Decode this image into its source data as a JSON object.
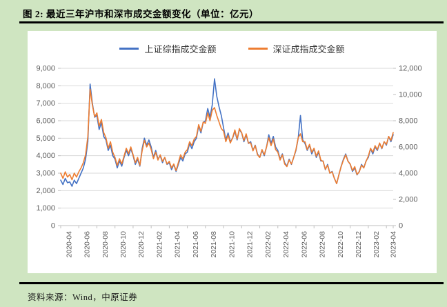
{
  "figure": {
    "title": "图 2:  最近三年沪市和深市成交金额变化（单位：亿元）",
    "source": "资料来源：Wind，中原证券"
  },
  "colors": {
    "background": "#cfe5c1",
    "panel": "#ffffff",
    "grid": "#d9d9d9",
    "axis_line": "#bfbfbf",
    "axis_text": "#595959",
    "series_blue": "#4472c4",
    "series_orange": "#ed7d31",
    "rule_black": "#000000"
  },
  "chart_data": {
    "type": "line",
    "title": "最近三年沪市和深市成交金额变化（单位：亿元）",
    "legend_position": "top",
    "grid": true,
    "x_range": [
      "2020-04",
      "2023-04"
    ],
    "points_per_month": 4,
    "x_tick_labels": [
      "2020-04",
      "2020-06",
      "2020-08",
      "2020-10",
      "2020-12",
      "2021-02",
      "2021-04",
      "2021-06",
      "2021-08",
      "2021-10",
      "2021-12",
      "2022-02",
      "2022-04",
      "2022-06",
      "2022-08",
      "2022-10",
      "2022-12",
      "2023-02",
      "2023-04"
    ],
    "left_axis": {
      "min": 0,
      "max": 9000,
      "tick_step": 1000,
      "ticks": [
        0,
        1000,
        2000,
        3000,
        4000,
        5000,
        6000,
        7000,
        8000,
        9000
      ]
    },
    "right_axis": {
      "min": 0,
      "max": 12000,
      "tick_step": 2000,
      "ticks": [
        0,
        2000,
        4000,
        6000,
        8000,
        10000,
        12000
      ]
    },
    "series": [
      {
        "name": "上证综指成交金额",
        "axis": "left",
        "color": "#4472c4",
        "values": [
          2600,
          2350,
          2700,
          2450,
          2500,
          2250,
          2600,
          2400,
          2700,
          3000,
          3300,
          3800,
          4800,
          8100,
          7000,
          6200,
          6300,
          5500,
          5900,
          5100,
          4900,
          4300,
          4600,
          4000,
          3800,
          3300,
          3700,
          3400,
          3900,
          4300,
          4000,
          4400,
          4000,
          3500,
          3800,
          3400,
          4400,
          5000,
          4600,
          4900,
          4500,
          3900,
          4300,
          3800,
          4000,
          3600,
          3900,
          3500,
          3600,
          3200,
          3500,
          3100,
          3500,
          3900,
          3700,
          4100,
          4200,
          4700,
          4400,
          4800,
          5000,
          5700,
          5300,
          5900,
          6000,
          6700,
          6200,
          6900,
          8400,
          7400,
          6800,
          6300,
          5600,
          4900,
          5300,
          4800,
          5000,
          5400,
          4900,
          5500,
          5300,
          4800,
          5200,
          4700,
          4800,
          4300,
          4600,
          4100,
          3900,
          4300,
          4000,
          4500,
          5200,
          4700,
          5100,
          4500,
          4300,
          3800,
          4100,
          3600,
          3400,
          3800,
          3500,
          3900,
          4300,
          5000,
          6300,
          4900,
          4700,
          4300,
          4600,
          4100,
          4400,
          3900,
          4200,
          3700,
          3700,
          3200,
          3500,
          3000,
          3100,
          2700,
          2400,
          2900,
          3400,
          3800,
          4100,
          3700,
          3500,
          3100,
          3300,
          2900,
          3100,
          3500,
          3300,
          3700,
          3900,
          4400,
          4100,
          4500,
          4300,
          4700,
          4400,
          4800,
          4600,
          5100,
          4800,
          5200
        ]
      },
      {
        "name": "深证成指成交金额",
        "axis": "right",
        "color": "#ed7d31",
        "values": [
          4000,
          3600,
          4100,
          3700,
          3900,
          3500,
          4000,
          3700,
          4100,
          4400,
          4800,
          5400,
          6800,
          10400,
          9200,
          8300,
          8600,
          7600,
          8100,
          7100,
          6700,
          5900,
          6400,
          5600,
          5200,
          4600,
          5100,
          4700,
          5300,
          5900,
          5500,
          6000,
          5400,
          4800,
          5200,
          4600,
          5700,
          6500,
          6000,
          6300,
          5800,
          5100,
          5600,
          5000,
          5400,
          4900,
          5200,
          4700,
          4900,
          4400,
          4700,
          4200,
          4800,
          5400,
          5100,
          5600,
          5800,
          6400,
          6100,
          6600,
          6800,
          7700,
          7200,
          7900,
          7800,
          8600,
          8000,
          8800,
          9000,
          8400,
          7900,
          7400,
          7200,
          6400,
          6900,
          6300,
          6700,
          7300,
          6600,
          7400,
          7100,
          6500,
          7000,
          6300,
          6300,
          5700,
          6100,
          5400,
          5200,
          5800,
          5400,
          6000,
          6700,
          6100,
          6600,
          5800,
          5600,
          5000,
          5400,
          4700,
          4500,
          5000,
          4700,
          5200,
          5800,
          6700,
          7000,
          6400,
          6400,
          5800,
          6200,
          5600,
          5900,
          5300,
          5700,
          5000,
          4900,
          4300,
          4600,
          4000,
          4100,
          3600,
          3200,
          3900,
          4500,
          5000,
          5400,
          4900,
          4700,
          4200,
          4500,
          3900,
          4100,
          4600,
          4400,
          4900,
          5300,
          5900,
          5600,
          6100,
          5800,
          6300,
          5900,
          6400,
          6200,
          6800,
          6500,
          7100
        ]
      }
    ]
  }
}
